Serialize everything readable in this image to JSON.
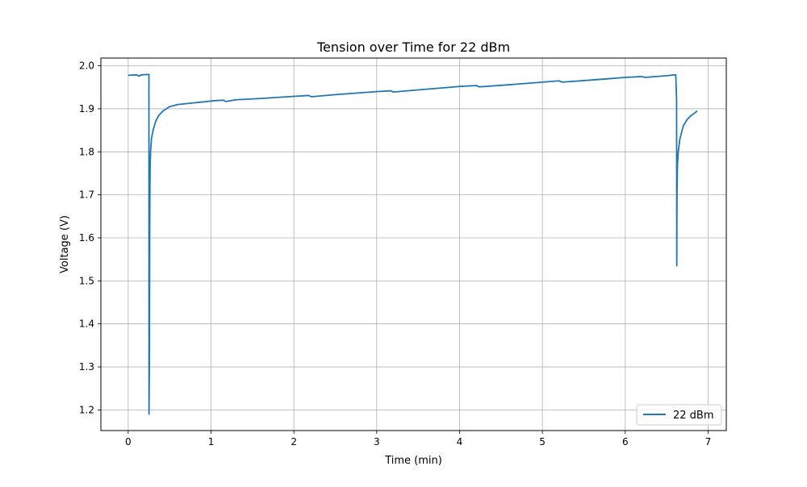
{
  "chart_data": {
    "type": "line",
    "title": "Tension over Time for 22 dBm",
    "xlabel": "Time (min)",
    "ylabel": "Voltage (V)",
    "xlim": [
      -0.33,
      7.22
    ],
    "ylim": [
      1.152,
      2.018
    ],
    "xticks": [
      0,
      1,
      2,
      3,
      4,
      5,
      6,
      7
    ],
    "yticks": [
      1.2,
      1.3,
      1.4,
      1.5,
      1.6,
      1.7,
      1.8,
      1.9,
      2.0
    ],
    "xtick_labels": [
      "0",
      "1",
      "2",
      "3",
      "4",
      "5",
      "6",
      "7"
    ],
    "ytick_labels": [
      "1.2",
      "1.3",
      "1.4",
      "1.5",
      "1.6",
      "1.7",
      "1.8",
      "1.9",
      "2.0"
    ],
    "grid": true,
    "legend_position": "lower right",
    "series": [
      {
        "name": "22 dBm",
        "color": "#1f77b4",
        "x": [
          0,
          0.1,
          0.13,
          0.16,
          0.25,
          0.251,
          0.256,
          0.259,
          0.262,
          0.265,
          0.27,
          0.28,
          0.3,
          0.33,
          0.37,
          0.42,
          0.5,
          0.6,
          0.75,
          0.9,
          1.05,
          1.15,
          1.18,
          1.3,
          1.6,
          2.0,
          2.18,
          2.21,
          2.5,
          3.0,
          3.17,
          3.2,
          3.5,
          4.0,
          4.2,
          4.24,
          4.6,
          5.0,
          5.2,
          5.24,
          5.6,
          6.0,
          6.2,
          6.24,
          6.5,
          6.6,
          6.61,
          6.62,
          6.622,
          6.625,
          6.63,
          6.64,
          6.66,
          6.7,
          6.75,
          6.8,
          6.87
        ],
        "y": [
          1.978,
          1.979,
          1.976,
          1.979,
          1.98,
          1.19,
          1.32,
          1.6,
          1.72,
          1.77,
          1.8,
          1.83,
          1.85,
          1.87,
          1.885,
          1.895,
          1.905,
          1.91,
          1.913,
          1.916,
          1.919,
          1.92,
          1.917,
          1.921,
          1.924,
          1.929,
          1.931,
          1.928,
          1.933,
          1.94,
          1.942,
          1.939,
          1.944,
          1.952,
          1.954,
          1.951,
          1.956,
          1.962,
          1.965,
          1.962,
          1.967,
          1.973,
          1.975,
          1.973,
          1.977,
          1.979,
          1.979,
          1.92,
          1.535,
          1.7,
          1.77,
          1.8,
          1.83,
          1.86,
          1.876,
          1.885,
          1.895
        ]
      }
    ]
  }
}
